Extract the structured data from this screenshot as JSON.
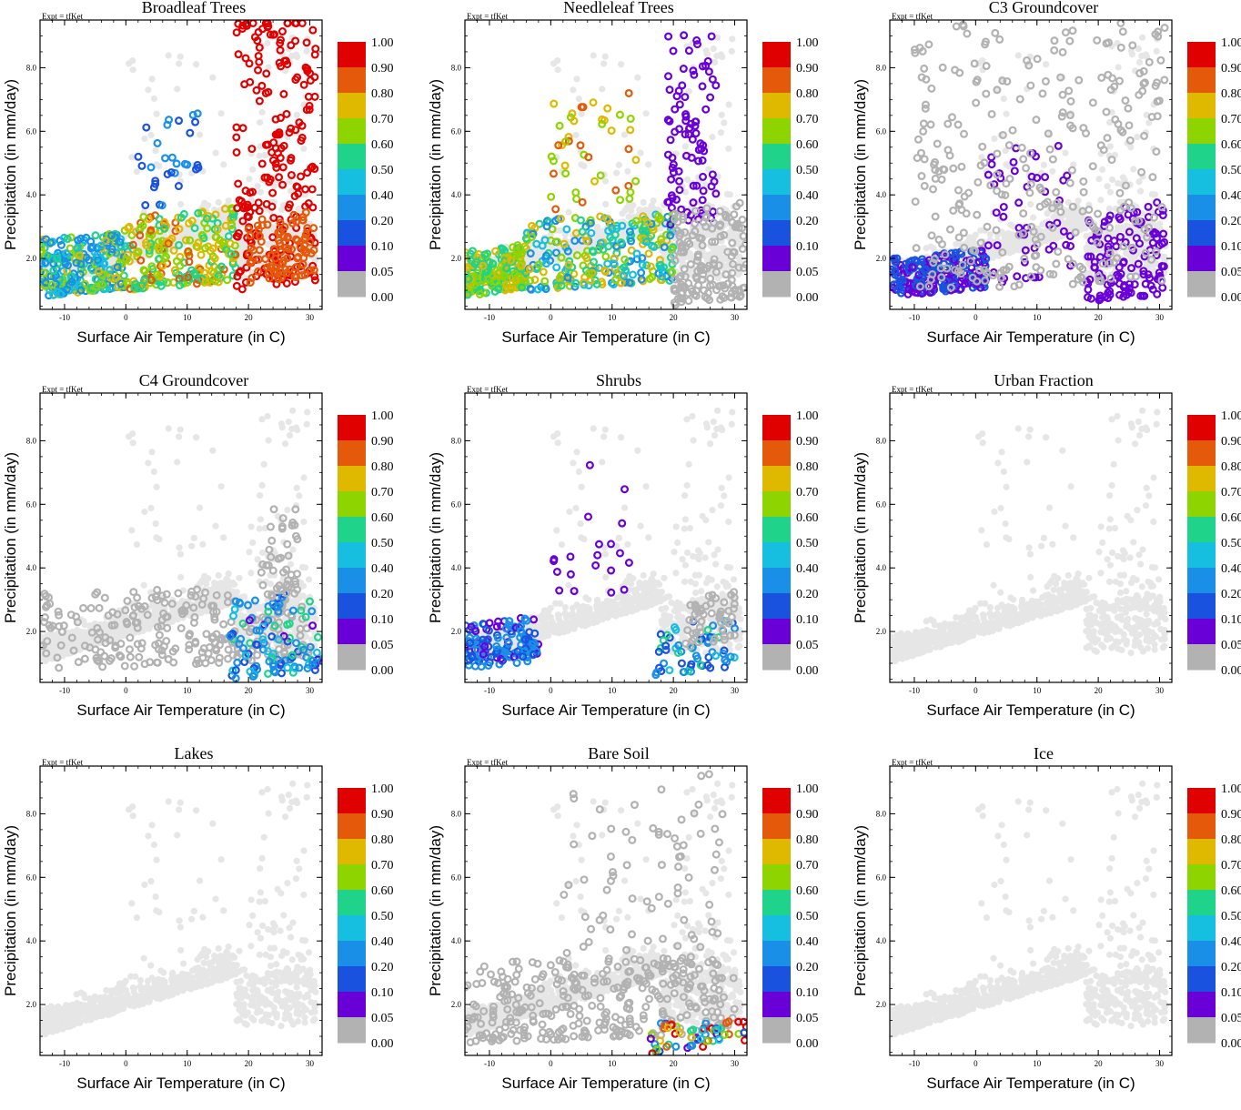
{
  "figure": {
    "expt_label": "Expt = tfKet",
    "xlabel": "Surface Air Temperature (in C)",
    "ylabel": "Precipitation (in mm/day)",
    "colorbar": {
      "labels": [
        "1.00",
        "0.90",
        "0.80",
        "0.70",
        "0.60",
        "0.50",
        "0.40",
        "0.20",
        "0.10",
        "0.05",
        "0.00"
      ],
      "colors": [
        "#e00000",
        "#e45a0a",
        "#dfb800",
        "#8ed400",
        "#1fd38a",
        "#16bfe0",
        "#1a8fe8",
        "#1a52e0",
        "#6a00d8",
        "#b2b2b2"
      ]
    },
    "point_colors": {
      "background": "#e6e6e6",
      "zero": "#b2b2b2"
    }
  },
  "chart_data": [
    {
      "type": "scatter",
      "title": "Broadleaf Trees",
      "xlabel": "Surface Air Temperature (in C)",
      "ylabel": "Precipitation (in mm/day)",
      "xlim": [
        -14,
        32
      ],
      "ylim": [
        0.4,
        9.5
      ],
      "xticks": [
        "-10",
        "0",
        "10",
        "20",
        "30"
      ],
      "yticks": [
        "2.0",
        "4.0",
        "6.0",
        "8.0"
      ],
      "color_by": "fraction",
      "groups": [
        {
          "region": [
            [
              -14,
              0
            ],
            [
              0.8,
              2.6
            ]
          ],
          "fraction_range": [
            0.2,
            0.75
          ],
          "count": 260
        },
        {
          "region": [
            [
              0,
              18
            ],
            [
              1.0,
              3.3
            ]
          ],
          "fraction_range": [
            0.5,
            0.85
          ],
          "count": 240
        },
        {
          "region": [
            [
              2,
              12
            ],
            [
              3.5,
              6.6
            ]
          ],
          "fraction_range": [
            0.1,
            0.4
          ],
          "count": 30
        },
        {
          "region": [
            [
              18,
              31
            ],
            [
              1.0,
              9.4
            ]
          ],
          "fraction_range": [
            0.9,
            1.0
          ],
          "count": 220
        },
        {
          "region": [
            [
              20,
              31
            ],
            [
              1.2,
              3.2
            ]
          ],
          "fraction_range": [
            0.8,
            0.9
          ],
          "count": 90
        }
      ]
    },
    {
      "type": "scatter",
      "title": "Needleleaf Trees",
      "xlabel": "Surface Air Temperature (in C)",
      "ylabel": "Precipitation (in mm/day)",
      "xlim": [
        -14,
        32
      ],
      "ylim": [
        0.4,
        9.5
      ],
      "xticks": [
        "-10",
        "0",
        "10",
        "20",
        "30"
      ],
      "yticks": [
        "2.0",
        "4.0",
        "6.0",
        "8.0"
      ],
      "color_by": "fraction",
      "groups": [
        {
          "region": [
            [
              -14,
              -4
            ],
            [
              0.8,
              2.2
            ]
          ],
          "fraction_range": [
            0.5,
            0.75
          ],
          "count": 220
        },
        {
          "region": [
            [
              -4,
              20
            ],
            [
              1.0,
              3.2
            ]
          ],
          "fraction_range": [
            0.3,
            0.8
          ],
          "count": 260
        },
        {
          "region": [
            [
              0,
              14
            ],
            [
              3.5,
              7.0
            ]
          ],
          "fraction_range": [
            0.6,
            0.85
          ],
          "count": 45
        },
        {
          "region": [
            [
              19,
              27
            ],
            [
              3.0,
              9.0
            ]
          ],
          "fraction_range": [
            0.05,
            0.1
          ],
          "count": 90
        },
        {
          "region": [
            [
              20,
              32
            ],
            [
              0.5,
              3.5
            ]
          ],
          "fraction_range": [
            0.0,
            0.0
          ],
          "count": 150
        }
      ]
    },
    {
      "type": "scatter",
      "title": "C3 Groundcover",
      "xlabel": "Surface Air Temperature (in C)",
      "ylabel": "Precipitation (in mm/day)",
      "xlim": [
        -14,
        32
      ],
      "ylim": [
        0.4,
        9.5
      ],
      "xticks": [
        "-10",
        "0",
        "10",
        "20",
        "30"
      ],
      "yticks": [
        "2.0",
        "4.0",
        "6.0",
        "8.0"
      ],
      "color_by": "fraction",
      "groups": [
        {
          "region": [
            [
              -14,
              2
            ],
            [
              0.8,
              2.0
            ]
          ],
          "fraction_range": [
            0.05,
            0.2
          ],
          "count": 220
        },
        {
          "region": [
            [
              2,
              16
            ],
            [
              1.2,
              5.5
            ]
          ],
          "fraction_range": [
            0.05,
            0.1
          ],
          "count": 50
        },
        {
          "region": [
            [
              18,
              31
            ],
            [
              0.6,
              3.5
            ]
          ],
          "fraction_range": [
            0.05,
            0.1
          ],
          "count": 120
        },
        {
          "region": [
            [
              -10,
              31
            ],
            [
              1.0,
              9.3
            ]
          ],
          "fraction_range": [
            0.0,
            0.0
          ],
          "count": 300
        }
      ]
    },
    {
      "type": "scatter",
      "title": "C4 Groundcover",
      "xlabel": "Surface Air Temperature (in C)",
      "ylabel": "Precipitation (in mm/day)",
      "xlim": [
        -14,
        32
      ],
      "ylim": [
        0.4,
        9.5
      ],
      "xticks": [
        "-10",
        "0",
        "10",
        "20",
        "30"
      ],
      "yticks": [
        "2.0",
        "4.0",
        "6.0",
        "8.0"
      ],
      "color_by": "fraction",
      "groups": [
        {
          "region": [
            [
              -14,
              30
            ],
            [
              0.8,
              3.2
            ]
          ],
          "fraction_range": [
            0.0,
            0.0
          ],
          "count": 260
        },
        {
          "region": [
            [
              17,
              32
            ],
            [
              0.5,
              3.0
            ]
          ],
          "fraction_range": [
            0.05,
            0.6
          ],
          "count": 110
        },
        {
          "region": [
            [
              22,
              28
            ],
            [
              3.0,
              5.8
            ]
          ],
          "fraction_range": [
            0.0,
            0.0
          ],
          "count": 40
        }
      ]
    },
    {
      "type": "scatter",
      "title": "Shrubs",
      "xlabel": "Surface Air Temperature (in C)",
      "ylabel": "Precipitation (in mm/day)",
      "xlim": [
        -14,
        32
      ],
      "ylim": [
        0.4,
        9.5
      ],
      "xticks": [
        "-10",
        "0",
        "10",
        "20",
        "30"
      ],
      "yticks": [
        "2.0",
        "4.0",
        "6.0",
        "8.0"
      ],
      "color_by": "fraction",
      "groups": [
        {
          "region": [
            [
              -14,
              -2
            ],
            [
              0.8,
              2.2
            ]
          ],
          "fraction_range": [
            0.05,
            0.4
          ],
          "count": 150
        },
        {
          "region": [
            [
              0,
              14
            ],
            [
              3.0,
              7.5
            ]
          ],
          "fraction_range": [
            0.05,
            0.05
          ],
          "count": 20
        },
        {
          "region": [
            [
              17,
              30
            ],
            [
              0.6,
              2.2
            ]
          ],
          "fraction_range": [
            0.1,
            0.6
          ],
          "count": 60
        },
        {
          "region": [
            [
              22,
              30
            ],
            [
              1.5,
              3.0
            ]
          ],
          "fraction_range": [
            0.0,
            0.0
          ],
          "count": 50
        }
      ]
    },
    {
      "type": "scatter",
      "title": "Urban Fraction",
      "xlabel": "Surface Air Temperature (in C)",
      "ylabel": "Precipitation (in mm/day)",
      "xlim": [
        -14,
        32
      ],
      "ylim": [
        0.4,
        9.5
      ],
      "xticks": [
        "-10",
        "0",
        "10",
        "20",
        "30"
      ],
      "yticks": [
        "2.0",
        "4.0",
        "6.0",
        "8.0"
      ],
      "color_by": "fraction",
      "groups": []
    },
    {
      "type": "scatter",
      "title": "Lakes",
      "xlabel": "Surface Air Temperature (in C)",
      "ylabel": "Precipitation (in mm/day)",
      "xlim": [
        -14,
        32
      ],
      "ylim": [
        0.4,
        9.5
      ],
      "xticks": [
        "-10",
        "0",
        "10",
        "20",
        "30"
      ],
      "yticks": [
        "2.0",
        "4.0",
        "6.0",
        "8.0"
      ],
      "color_by": "fraction",
      "groups": []
    },
    {
      "type": "scatter",
      "title": "Bare Soil",
      "xlabel": "Surface Air Temperature (in C)",
      "ylabel": "Precipitation (in mm/day)",
      "xlim": [
        -14,
        32
      ],
      "ylim": [
        0.4,
        9.5
      ],
      "xticks": [
        "-10",
        "0",
        "10",
        "20",
        "30"
      ],
      "yticks": [
        "2.0",
        "4.0",
        "6.0",
        "8.0"
      ],
      "color_by": "fraction",
      "groups": [
        {
          "region": [
            [
              -14,
              30
            ],
            [
              0.8,
              3.3
            ]
          ],
          "fraction_range": [
            0.0,
            0.0
          ],
          "count": 320
        },
        {
          "region": [
            [
              2,
              28
            ],
            [
              3.0,
              9.0
            ]
          ],
          "fraction_range": [
            0.0,
            0.0
          ],
          "count": 80
        },
        {
          "region": [
            [
              16,
              32
            ],
            [
              0.45,
              1.4
            ]
          ],
          "fraction_range": [
            0.05,
            1.0
          ],
          "count": 60
        }
      ]
    },
    {
      "type": "scatter",
      "title": "Ice",
      "xlabel": "Surface Air Temperature (in C)",
      "ylabel": "Precipitation (in mm/day)",
      "xlim": [
        -14,
        32
      ],
      "ylim": [
        0.4,
        9.5
      ],
      "xticks": [
        "-10",
        "0",
        "10",
        "20",
        "30"
      ],
      "yticks": [
        "2.0",
        "4.0",
        "6.0",
        "8.0"
      ],
      "color_by": "fraction",
      "groups": []
    }
  ]
}
